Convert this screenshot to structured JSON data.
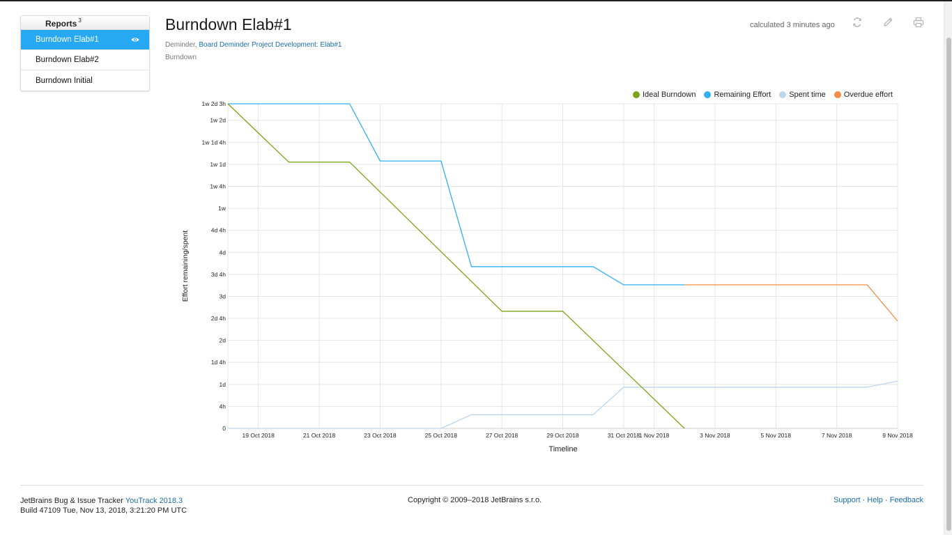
{
  "sidebar": {
    "title": "Reports",
    "count": "3",
    "items": [
      {
        "label": "Burndown Elab#1",
        "active": true
      },
      {
        "label": "Burndown Elab#2",
        "active": false
      },
      {
        "label": "Burndown Initial",
        "active": false
      }
    ]
  },
  "report": {
    "title": "Burndown Elab#1",
    "project": "Deminder",
    "board_link": "Board Deminder Project Development: Elab#1",
    "type": "Burndown",
    "calculated": "calculated 3 minutes ago"
  },
  "icons": {
    "refresh": "refresh-icon",
    "edit": "pencil-icon",
    "print": "printer-icon",
    "eye": "eye-icon"
  },
  "colors": {
    "accent": "#26a8f3",
    "ideal": "#7aa414",
    "remaining": "#2fb0f3",
    "spent": "#bcd5ec",
    "overdue": "#f58d45"
  },
  "chart_data": {
    "type": "line",
    "xlabel": "Timeline",
    "ylabel": "Effort remaining/spent",
    "x_ticks": [
      "19 Oct 2018",
      "21 Oct 2018",
      "23 Oct 2018",
      "25 Oct 2018",
      "27 Oct 2018",
      "29 Oct 2018",
      "31 Oct 2018",
      "1 Nov 2018",
      "3 Nov 2018",
      "5 Nov 2018",
      "7 Nov 2018",
      "9 Nov 2018"
    ],
    "x_tick_days": [
      1,
      3,
      5,
      7,
      9,
      11,
      13,
      14,
      16,
      18,
      20,
      22
    ],
    "y_ticks": [
      "0",
      "4h",
      "1d",
      "1d 4h",
      "2d",
      "2d 4h",
      "3d",
      "3d 4h",
      "4d",
      "4d 4h",
      "1w",
      "1w 4h",
      "1w 1d",
      "1w 1d 4h",
      "1w 2d",
      "1w 2d 3h"
    ],
    "y_tick_hours": [
      0,
      4,
      8,
      12,
      16,
      20,
      24,
      28,
      32,
      36,
      40,
      44,
      48,
      52,
      56,
      59
    ],
    "x_range_days": [
      0,
      22
    ],
    "y_range_hours": [
      0,
      59
    ],
    "grid": true,
    "legend_position": "top-right",
    "series": [
      {
        "name": "Ideal Burndown",
        "color": "#7aa414",
        "points": [
          [
            0,
            59
          ],
          [
            2,
            48.4
          ],
          [
            4,
            48.4
          ],
          [
            9,
            21.3
          ],
          [
            11,
            21.3
          ],
          [
            15,
            0
          ]
        ]
      },
      {
        "name": "Remaining Effort",
        "color": "#2fb0f3",
        "points": [
          [
            0,
            59
          ],
          [
            4,
            59
          ],
          [
            5,
            48.6
          ],
          [
            7,
            48.6
          ],
          [
            8,
            29.4
          ],
          [
            12,
            29.4
          ],
          [
            13,
            26.1
          ],
          [
            15,
            26.1
          ]
        ]
      },
      {
        "name": "Spent time",
        "color": "#bcd5ec",
        "points": [
          [
            0,
            0
          ],
          [
            7,
            0
          ],
          [
            8,
            2.5
          ],
          [
            12,
            2.5
          ],
          [
            13,
            7.5
          ],
          [
            21,
            7.5
          ],
          [
            22,
            8.6
          ]
        ]
      },
      {
        "name": "Overdue effort",
        "color": "#f58d45",
        "points": [
          [
            15,
            26.1
          ],
          [
            21,
            26.1
          ],
          [
            22,
            19.5
          ]
        ]
      }
    ]
  },
  "footer": {
    "tracker_text": "JetBrains Bug & Issue Tracker",
    "product_link": "YouTrack 2018.3",
    "build": "Build 47109 Tue, Nov 13, 2018, 3:21:20 PM UTC",
    "copyright": "Copyright © 2009–2018 JetBrains s.r.o.",
    "links": [
      "Support",
      "Help",
      "Feedback"
    ]
  }
}
